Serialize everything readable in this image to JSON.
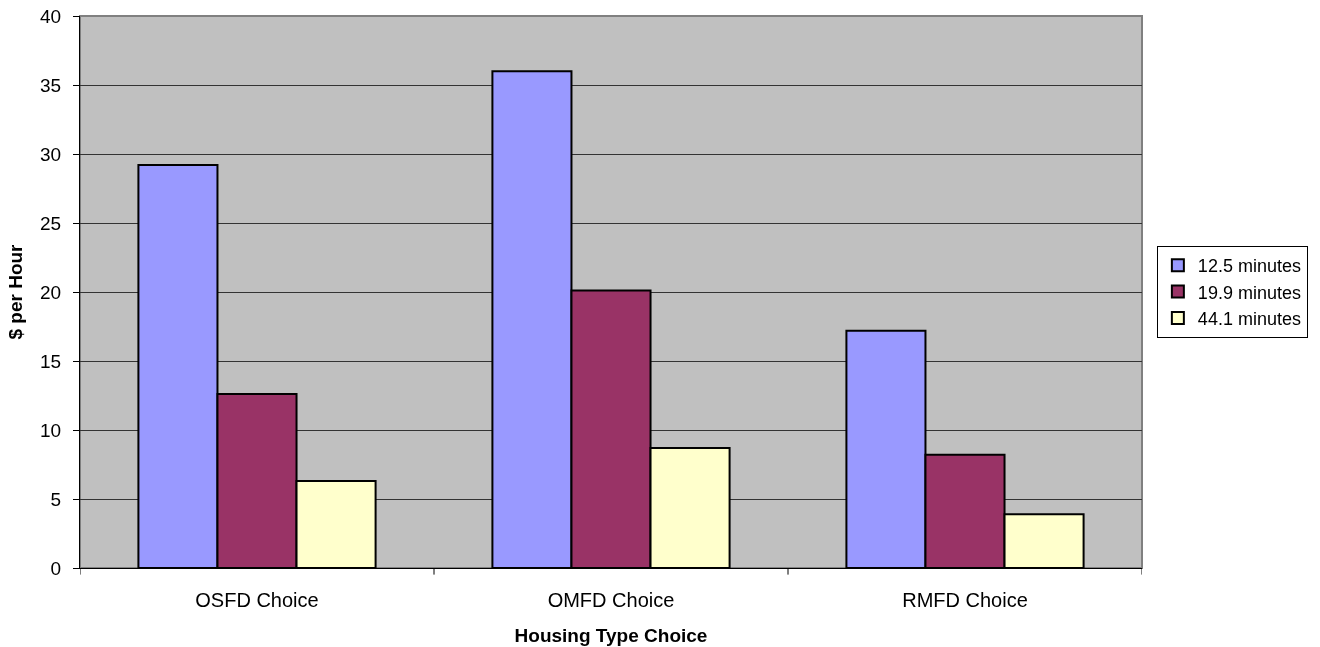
{
  "chart_data": {
    "type": "bar",
    "xlabel": "Housing Type Choice",
    "ylabel": "$ per Hour",
    "categories": [
      "OSFD Choice",
      "OMFD Choice",
      "RMFD Choice"
    ],
    "series": [
      {
        "name": "12.5 minutes",
        "color": "#9999ff",
        "values": [
          29.2,
          36.0,
          17.2
        ]
      },
      {
        "name": "19.9 minutes",
        "color": "#993366",
        "values": [
          12.6,
          20.1,
          8.2
        ]
      },
      {
        "name": "44.1 minutes",
        "color": "#ffffcc",
        "values": [
          6.3,
          8.7,
          3.9
        ]
      }
    ],
    "ylim": [
      0,
      40
    ],
    "yticks": [
      0,
      5,
      10,
      15,
      20,
      25,
      30,
      35,
      40
    ],
    "grid": "y",
    "legend": "right"
  }
}
